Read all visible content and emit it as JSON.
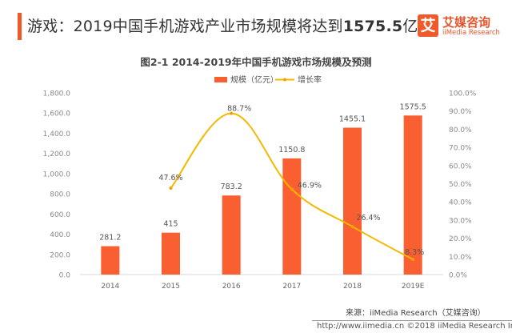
{
  "header": {
    "headline_prefix": "游戏：2019中国手机游戏产业市场规模将达到",
    "headline_bold": "1575.5",
    "headline_suffix": "亿元",
    "logo_glyph": "艾",
    "logo_cn": "艾媒咨询",
    "logo_en": "iiMedia Research",
    "accent_color": "#f05a2b"
  },
  "chart_data": {
    "type": "bar",
    "title": "图2-1 2014-2019年中国手机游戏市场规模及预测",
    "categories": [
      "2014",
      "2015",
      "2016",
      "2017",
      "2018",
      "2019E"
    ],
    "series": [
      {
        "name": "规模（亿元）",
        "type": "bar",
        "axis": "left",
        "color": "#f95f30",
        "values": [
          281.2,
          415,
          783.2,
          1150.8,
          1455.1,
          1575.5
        ],
        "labels": [
          "281.2",
          "415",
          "783.2",
          "1150.8",
          "1455.1",
          "1575.5"
        ]
      },
      {
        "name": "增长率",
        "type": "line",
        "axis": "right",
        "color": "#f5b800",
        "values": [
          null,
          47.6,
          88.7,
          46.9,
          26.4,
          8.3
        ],
        "labels": [
          "",
          "47.6%",
          "88.7%",
          "46.9%",
          "26.4%",
          "8.3%"
        ]
      }
    ],
    "left_axis": {
      "min": 0,
      "max": 1800,
      "step": 200,
      "ticks": [
        "0.0",
        "200.0",
        "400.0",
        "600.0",
        "800.0",
        "1,000.0",
        "1,200.0",
        "1,400.0",
        "1,600.0",
        "1,800.0"
      ]
    },
    "right_axis": {
      "min": 0,
      "max": 100,
      "step": 10,
      "ticks": [
        "0.0%",
        "10.0%",
        "20.0%",
        "30.0%",
        "40.0%",
        "50.0%",
        "60.0%",
        "70.0%",
        "80.0%",
        "90.0%",
        "100.0%"
      ]
    },
    "legend_position": "top-center",
    "grid": false
  },
  "footer": {
    "source": "来源：iiMedia Research（艾媒咨询）",
    "copyright": "http://www.iimedia.cn   ©2018  iiMedia Research  Inc"
  }
}
